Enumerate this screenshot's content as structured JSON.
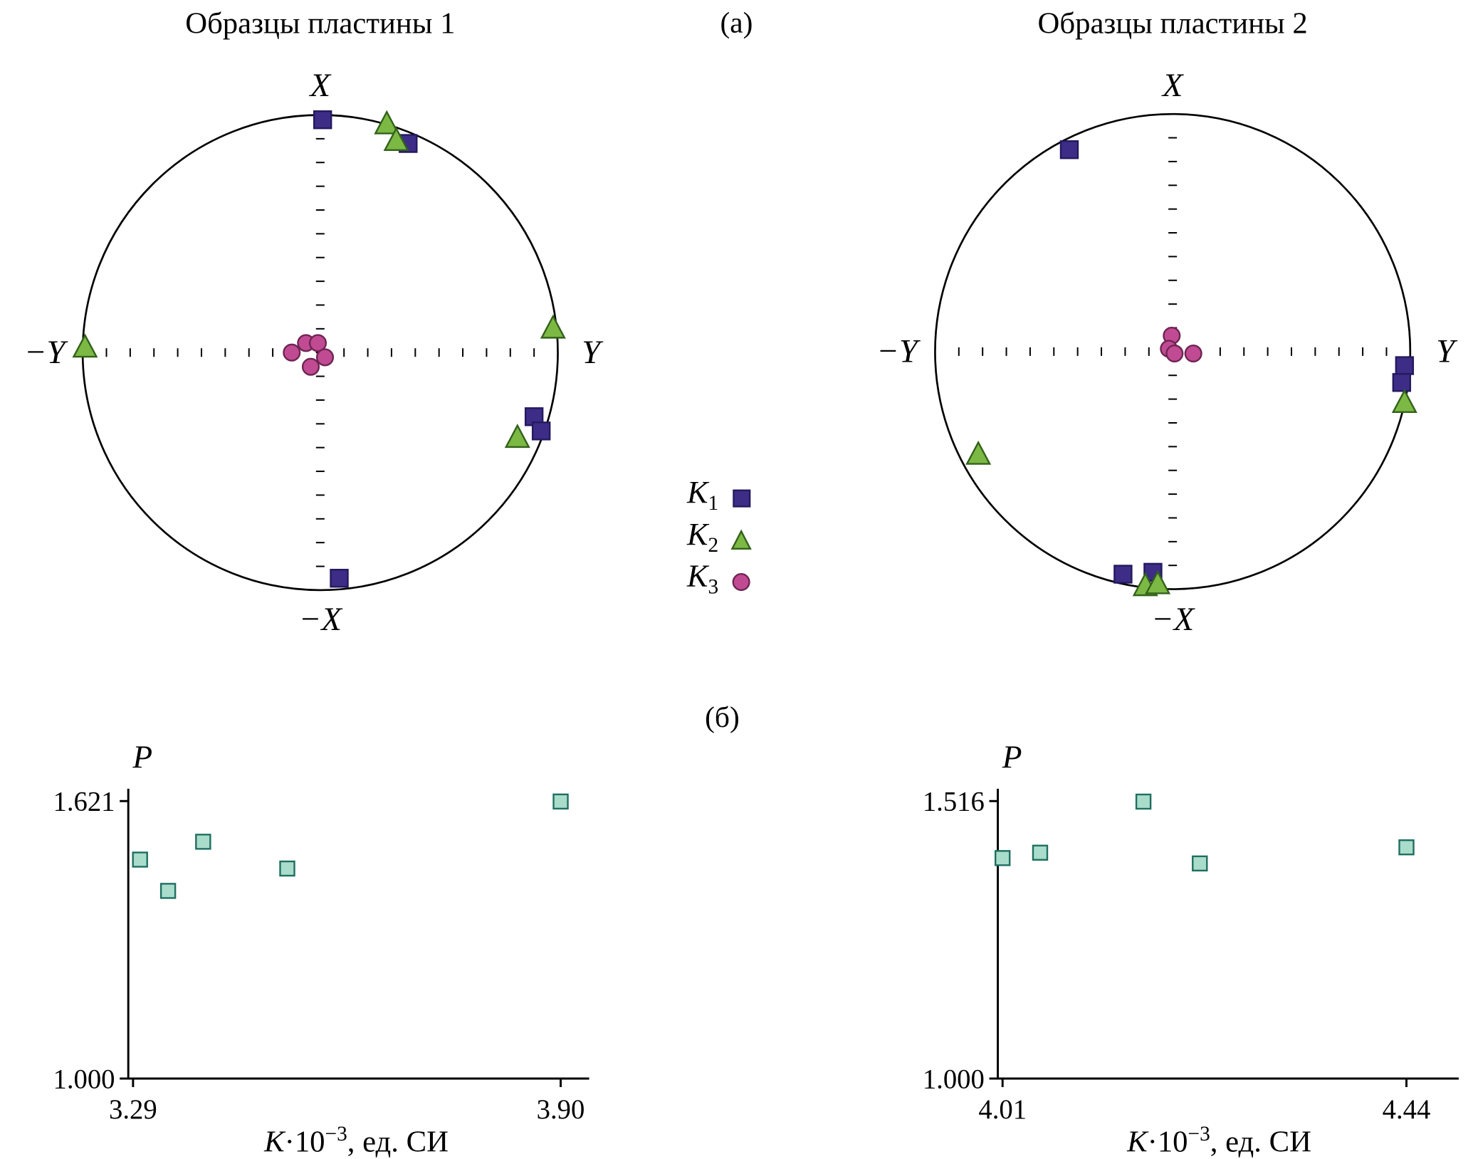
{
  "figure": {
    "panel_a_label": "(а)",
    "panel_b_label": "(б)"
  },
  "legend": {
    "items": [
      {
        "symbol": "K",
        "sub": "1",
        "marker": "square",
        "color": "#3d2d87",
        "edge": "#241a5e"
      },
      {
        "symbol": "K",
        "sub": "2",
        "marker": "triangle",
        "color": "#7cb944",
        "edge": "#33611a"
      },
      {
        "symbol": "K",
        "sub": "3",
        "marker": "circle",
        "color": "#c14b93",
        "edge": "#6e2553"
      }
    ]
  },
  "chart_data": [
    {
      "id": "stereonet-plate1",
      "type": "scatter",
      "variant": "stereonet",
      "title": "Образцы пластины 1",
      "axis_labels": {
        "top": "X",
        "bottom": "−X",
        "right": "Y",
        "left": "−Y"
      },
      "point_format": "fractions of circle radius; +x toward Y, +y toward X",
      "series": [
        {
          "name": "K1",
          "marker": "square",
          "color": "#3d2d87",
          "edge": "#241a5e",
          "points": [
            [
              0.01,
              0.98
            ],
            [
              0.37,
              0.88
            ],
            [
              0.9,
              -0.27
            ],
            [
              0.93,
              -0.33
            ],
            [
              0.08,
              -0.95
            ]
          ]
        },
        {
          "name": "K2",
          "marker": "triangle",
          "color": "#7cb944",
          "edge": "#33611a",
          "points": [
            [
              0.28,
              0.96
            ],
            [
              0.32,
              0.89
            ],
            [
              0.98,
              0.1
            ],
            [
              -0.99,
              0.02
            ],
            [
              0.83,
              -0.36
            ]
          ]
        },
        {
          "name": "K3",
          "marker": "circle",
          "color": "#c14b93",
          "edge": "#6e2553",
          "points": [
            [
              -0.12,
              0.0
            ],
            [
              -0.06,
              0.04
            ],
            [
              -0.01,
              0.04
            ],
            [
              -0.04,
              -0.06
            ],
            [
              0.02,
              -0.02
            ]
          ]
        }
      ]
    },
    {
      "id": "stereonet-plate2",
      "type": "scatter",
      "variant": "stereonet",
      "title": "Образцы пластины 2",
      "axis_labels": {
        "top": "X",
        "bottom": "−X",
        "right": "Y",
        "left": "−Y"
      },
      "point_format": "fractions of circle radius; +x toward Y, +y toward X",
      "series": [
        {
          "name": "K1",
          "marker": "square",
          "color": "#3d2d87",
          "edge": "#241a5e",
          "points": [
            [
              -0.435,
              0.85
            ],
            [
              0.976,
              -0.059
            ],
            [
              0.964,
              -0.13
            ],
            [
              -0.209,
              -0.937
            ],
            [
              -0.083,
              -0.929
            ]
          ]
        },
        {
          "name": "K2",
          "marker": "triangle",
          "color": "#7cb944",
          "edge": "#33611a",
          "points": [
            [
              0.976,
              -0.217
            ],
            [
              -0.818,
              -0.435
            ],
            [
              -0.115,
              -0.988
            ],
            [
              -0.063,
              -0.98
            ]
          ]
        },
        {
          "name": "K3",
          "marker": "circle",
          "color": "#c14b93",
          "edge": "#6e2553",
          "points": [
            [
              -0.004,
              0.067
            ],
            [
              -0.016,
              0.012
            ],
            [
              0.008,
              -0.008
            ],
            [
              0.087,
              -0.008
            ]
          ]
        }
      ]
    },
    {
      "id": "scatter-plate1",
      "type": "scatter",
      "ylabel": "P",
      "xlabel": "K·10⁻³, ед. СИ",
      "xlabel_parts": {
        "k": "K",
        "mid": "·10",
        "exp": "−3",
        "unit": ", ед. СИ"
      },
      "xlim": [
        3.29,
        3.9
      ],
      "ylim": [
        1.0,
        1.621
      ],
      "xticks": [
        {
          "v": 3.29,
          "label": "3.29"
        },
        {
          "v": 3.9,
          "label": "3.90"
        }
      ],
      "yticks": [
        {
          "v": 1.621,
          "label": "1.621"
        },
        {
          "v": 1.0,
          "label": "1.000"
        }
      ],
      "marker": "square",
      "marker_color": "#a9dcca",
      "marker_edge": "#1f6f60",
      "points": [
        [
          3.3,
          1.49
        ],
        [
          3.34,
          1.42
        ],
        [
          3.39,
          1.53
        ],
        [
          3.51,
          1.47
        ],
        [
          3.9,
          1.62
        ]
      ]
    },
    {
      "id": "scatter-plate2",
      "type": "scatter",
      "ylabel": "P",
      "xlabel": "K·10⁻³, ед. СИ",
      "xlabel_parts": {
        "k": "K",
        "mid": "·10",
        "exp": "−3",
        "unit": ", ед. СИ"
      },
      "xlim": [
        4.01,
        4.44
      ],
      "ylim": [
        1.0,
        1.516
      ],
      "xticks": [
        {
          "v": 4.01,
          "label": "4.01"
        },
        {
          "v": 4.44,
          "label": "4.44"
        }
      ],
      "yticks": [
        {
          "v": 1.516,
          "label": "1.516"
        },
        {
          "v": 1.0,
          "label": "1.000"
        }
      ],
      "marker": "square",
      "marker_color": "#a9dcca",
      "marker_edge": "#1f6f60",
      "points": [
        [
          4.01,
          1.41
        ],
        [
          4.05,
          1.42
        ],
        [
          4.16,
          1.515
        ],
        [
          4.22,
          1.4
        ],
        [
          4.44,
          1.43
        ]
      ]
    }
  ]
}
